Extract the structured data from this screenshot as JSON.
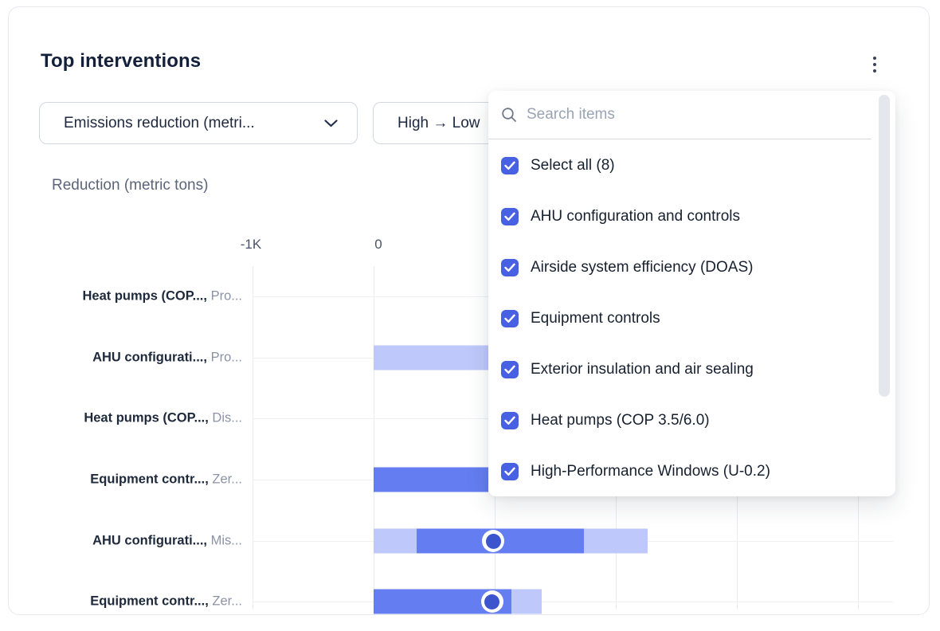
{
  "card": {
    "title": "Top interventions",
    "menu_icon": "kebab-menu-icon"
  },
  "filters": {
    "metric_select": {
      "value": "Emissions reduction (metri...",
      "chevron_icon": "chevron-down-icon"
    },
    "sort_select": {
      "value": "High → Low"
    }
  },
  "dropdown_panel": {
    "search": {
      "placeholder": "Search items",
      "icon": "search-icon"
    },
    "items": [
      {
        "label": "Select all (8)",
        "checked": true
      },
      {
        "label": "AHU configuration and controls",
        "checked": true
      },
      {
        "label": "Airside system efficiency (DOAS)",
        "checked": true
      },
      {
        "label": "Equipment controls",
        "checked": true
      },
      {
        "label": "Exterior insulation and air sealing",
        "checked": true
      },
      {
        "label": "Heat pumps (COP 3.5/6.0)",
        "checked": true
      },
      {
        "label": "High-Performance Windows (U-0.2)",
        "checked": true
      }
    ]
  },
  "chart_data": {
    "type": "bar",
    "orientation": "horizontal",
    "title": "Reduction (metric tons)",
    "xlabel": "Reduction (metric tons)",
    "grid": true,
    "x_axis": {
      "unit": "metric tons",
      "gridline_values": [
        -1000,
        0,
        1000,
        2000,
        3000,
        4000
      ],
      "tick_labels": [
        {
          "value": -1000,
          "label": "-1K"
        },
        {
          "value": 0,
          "label": "0"
        }
      ]
    },
    "rows": [
      {
        "name": "Heat pumps (COP...,",
        "scenario": "Pro...",
        "bar": null
      },
      {
        "name": "AHU configurati...,",
        "scenario": "Pro...",
        "bar": {
          "style": "light",
          "outer": [
            0,
            950
          ],
          "clipped_by_overlay": true
        }
      },
      {
        "name": "Heat pumps (COP...,",
        "scenario": "Dis...",
        "bar": null
      },
      {
        "name": "Equipment contr...,",
        "scenario": "Zer...",
        "bar": {
          "style": "solid",
          "outer": [
            0,
            950
          ],
          "clipped_by_overlay": true
        }
      },
      {
        "name": "AHU configurati...,",
        "scenario": "Mis...",
        "bar": {
          "style": "range",
          "outer": [
            0,
            2260
          ],
          "inner": [
            355,
            1740
          ],
          "marker": 990
        }
      },
      {
        "name": "Equipment contr...,",
        "scenario": "Zer...",
        "bar": {
          "style": "range",
          "outer": [
            0,
            1390
          ],
          "inner": [
            0,
            1140
          ],
          "marker": 980
        }
      }
    ]
  },
  "colors": {
    "accent_blue": "#4760e4",
    "bar_solid": "#647df0",
    "bar_light": "#bec8fa",
    "marker_fill": "#3c55cd",
    "grid": "#e9ebf0",
    "title_text": "#14203a"
  }
}
